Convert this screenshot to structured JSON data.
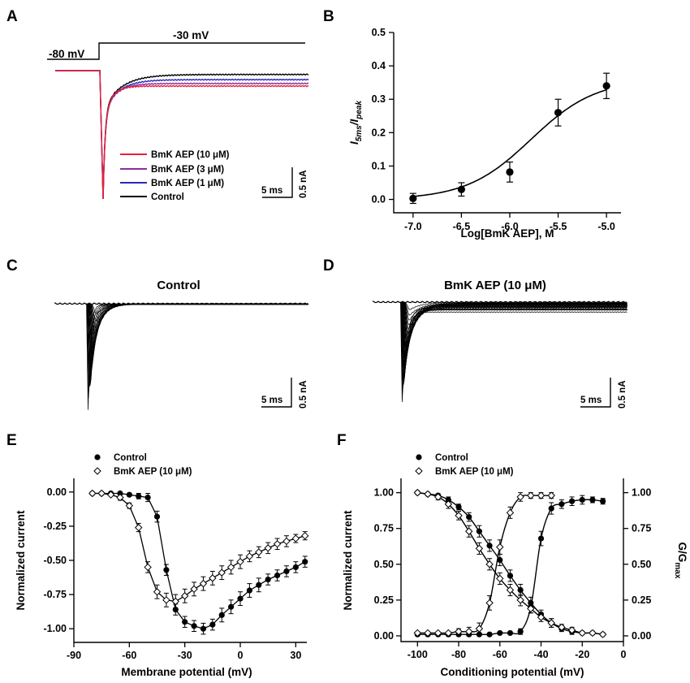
{
  "panels": {
    "A": {
      "letter": "A"
    },
    "B": {
      "letter": "B"
    },
    "C": {
      "letter": "C"
    },
    "D": {
      "letter": "D"
    },
    "E": {
      "letter": "E"
    },
    "F": {
      "letter": "F"
    }
  },
  "colors": {
    "red": "#e8203a",
    "purple": "#8b2f9c",
    "blue": "#2a2ab8",
    "black": "#000000"
  },
  "chart_data": [
    {
      "id": "A",
      "type": "line",
      "protocol": {
        "holding_label": "-80 mV",
        "test_label": "-30 mV"
      },
      "scalebar": {
        "x_label": "5 ms",
        "y_label": "0.5 nA"
      },
      "legend": [
        {
          "name": "BmK AEP (10 μM)",
          "color": "#e8203a"
        },
        {
          "name": "BmK AEP (3 μM)",
          "color": "#8b2f9c"
        },
        {
          "name": "BmK AEP (1 μM)",
          "color": "#2a2ab8"
        },
        {
          "name": "Control",
          "color": "#000000"
        }
      ],
      "steady_fraction": [
        0.12,
        0.1,
        0.07,
        0.03
      ]
    },
    {
      "id": "B",
      "type": "scatter",
      "xlabel": "Log[BmK AEP], M",
      "ylabel_main": "I",
      "ylabel_sub1": "5ms",
      "ylabel_mid": "/I",
      "ylabel_sub2": "peak",
      "xlim": [
        -7.2,
        -4.85
      ],
      "ylim": [
        -0.04,
        0.5
      ],
      "xticks": [
        "-7.0",
        "-6.5",
        "-6.0",
        "-5.5",
        "-5.0"
      ],
      "xtick_values": [
        -7.0,
        -6.5,
        -6.0,
        -5.5,
        -5.0
      ],
      "yticks": [
        "0.0",
        "0.1",
        "0.2",
        "0.3",
        "0.4",
        "0.5"
      ],
      "ytick_values": [
        0.0,
        0.1,
        0.2,
        0.3,
        0.4,
        0.5
      ],
      "x": [
        -7.0,
        -6.5,
        -6.0,
        -5.5,
        -5.0
      ],
      "y": [
        0.003,
        0.03,
        0.082,
        0.26,
        0.34
      ],
      "err": [
        0.015,
        0.02,
        0.03,
        0.04,
        0.038
      ],
      "fit": {
        "bottom": 0.0,
        "top": 0.36,
        "log_ec50": -5.78,
        "hill": 1.3
      }
    },
    {
      "id": "C",
      "type": "line",
      "title": "Control",
      "scalebar": {
        "x_label": "5 ms",
        "y_label": "0.5 nA"
      },
      "sweeps": 18
    },
    {
      "id": "D",
      "type": "line",
      "title": "BmK AEP (10 μM)",
      "scalebar": {
        "x_label": "5 ms",
        "y_label": "0.5 nA"
      },
      "sweeps": 24
    },
    {
      "id": "E",
      "type": "scatter",
      "xlabel": "Membrane potential (mV)",
      "ylabel": "Normalized current",
      "xlim": [
        -90,
        36
      ],
      "ylim": [
        -1.1,
        0.1
      ],
      "xticks": [
        "-90",
        "-60",
        "-30",
        "0",
        "30"
      ],
      "xtick_values": [
        -90,
        -60,
        -30,
        0,
        30
      ],
      "yticks": [
        "0.00",
        "-0.25",
        "-0.50",
        "-0.75",
        "-1.00"
      ],
      "ytick_values": [
        0.0,
        -0.25,
        -0.5,
        -0.75,
        -1.0
      ],
      "series": [
        {
          "name": "Control",
          "marker": "filled-circle",
          "x": [
            -80,
            -75,
            -70,
            -65,
            -60,
            -55,
            -50,
            -45,
            -40,
            -35,
            -30,
            -25,
            -20,
            -15,
            -10,
            -5,
            0,
            5,
            10,
            15,
            20,
            25,
            30,
            35
          ],
          "y": [
            -0.01,
            -0.01,
            -0.01,
            -0.01,
            -0.02,
            -0.03,
            -0.04,
            -0.18,
            -0.57,
            -0.86,
            -0.95,
            -0.98,
            -1.0,
            -0.97,
            -0.9,
            -0.84,
            -0.78,
            -0.72,
            -0.68,
            -0.64,
            -0.61,
            -0.58,
            -0.55,
            -0.51
          ],
          "err": [
            0.01,
            0.01,
            0.01,
            0.01,
            0.01,
            0.02,
            0.03,
            0.04,
            0.04,
            0.04,
            0.04,
            0.04,
            0.04,
            0.04,
            0.05,
            0.05,
            0.05,
            0.05,
            0.05,
            0.04,
            0.04,
            0.04,
            0.04,
            0.04
          ]
        },
        {
          "name": "BmK AEP (10 μM)",
          "marker": "open-diamond",
          "x": [
            -80,
            -75,
            -70,
            -65,
            -60,
            -55,
            -50,
            -45,
            -40,
            -35,
            -30,
            -25,
            -20,
            -15,
            -10,
            -5,
            0,
            5,
            10,
            15,
            20,
            25,
            30,
            35
          ],
          "y": [
            -0.01,
            -0.01,
            -0.02,
            -0.04,
            -0.1,
            -0.26,
            -0.55,
            -0.73,
            -0.79,
            -0.8,
            -0.76,
            -0.71,
            -0.67,
            -0.63,
            -0.59,
            -0.55,
            -0.51,
            -0.47,
            -0.44,
            -0.41,
            -0.38,
            -0.36,
            -0.34,
            -0.32
          ],
          "err": [
            0.01,
            0.01,
            0.01,
            0.02,
            0.02,
            0.03,
            0.04,
            0.05,
            0.05,
            0.05,
            0.05,
            0.05,
            0.05,
            0.05,
            0.05,
            0.05,
            0.05,
            0.04,
            0.04,
            0.04,
            0.04,
            0.04,
            0.03,
            0.03
          ]
        }
      ],
      "legend_placement": "top-center"
    },
    {
      "id": "F",
      "type": "scatter",
      "xlabel": "Conditioning potential (mV)",
      "ylabel": "Normalized current",
      "ylabel_right_main": "G/G",
      "ylabel_right_sub": "max",
      "xlim": [
        -108,
        0
      ],
      "ylim": [
        -0.04,
        1.1
      ],
      "xticks": [
        "-100",
        "-80",
        "-60",
        "-40",
        "-20",
        "0"
      ],
      "xtick_values": [
        -100,
        -80,
        -60,
        -40,
        -20,
        0
      ],
      "yticks": [
        "0.00",
        "0.25",
        "0.50",
        "0.75",
        "1.00"
      ],
      "ytick_values": [
        0.0,
        0.25,
        0.5,
        0.75,
        1.0
      ],
      "series": [
        {
          "name": "Control",
          "marker": "filled-circle",
          "curve": "inactivation",
          "x": [
            -100,
            -95,
            -90,
            -85,
            -80,
            -75,
            -70,
            -65,
            -60,
            -55,
            -50,
            -45,
            -40,
            -35,
            -30,
            -25,
            -20,
            -15,
            -10
          ],
          "y": [
            1.0,
            0.99,
            0.98,
            0.95,
            0.9,
            0.83,
            0.73,
            0.63,
            0.53,
            0.42,
            0.32,
            0.23,
            0.15,
            0.09,
            0.05,
            0.03,
            0.02,
            0.02,
            0.01
          ],
          "err": [
            0.0,
            0.01,
            0.01,
            0.02,
            0.02,
            0.03,
            0.04,
            0.04,
            0.04,
            0.04,
            0.04,
            0.04,
            0.03,
            0.03,
            0.02,
            0.02,
            0.01,
            0.01,
            0.01
          ]
        },
        {
          "name": "Control",
          "marker": "filled-circle",
          "curve": "activation",
          "x": [
            -100,
            -95,
            -90,
            -85,
            -80,
            -75,
            -70,
            -65,
            -60,
            -55,
            -50,
            -45,
            -40,
            -35,
            -30,
            -25,
            -20,
            -15,
            -10
          ],
          "y": [
            0.01,
            0.01,
            0.01,
            0.01,
            0.01,
            0.01,
            0.01,
            0.01,
            0.02,
            0.02,
            0.03,
            0.2,
            0.68,
            0.89,
            0.92,
            0.94,
            0.95,
            0.95,
            0.94
          ],
          "err": [
            0.01,
            0.01,
            0.01,
            0.01,
            0.01,
            0.01,
            0.01,
            0.01,
            0.01,
            0.01,
            0.02,
            0.04,
            0.05,
            0.04,
            0.03,
            0.03,
            0.03,
            0.02,
            0.02
          ]
        },
        {
          "name": "BmK AEP (10 μM)",
          "marker": "open-diamond",
          "curve": "inactivation",
          "x": [
            -100,
            -95,
            -90,
            -85,
            -80,
            -75,
            -70,
            -65,
            -60,
            -55,
            -50,
            -45,
            -40,
            -35,
            -30,
            -25,
            -20,
            -15,
            -10
          ],
          "y": [
            1.0,
            0.99,
            0.97,
            0.92,
            0.84,
            0.73,
            0.61,
            0.5,
            0.4,
            0.32,
            0.25,
            0.19,
            0.13,
            0.09,
            0.06,
            0.04,
            0.02,
            0.02,
            0.01
          ],
          "err": [
            0.0,
            0.01,
            0.02,
            0.03,
            0.03,
            0.04,
            0.04,
            0.04,
            0.04,
            0.04,
            0.04,
            0.03,
            0.03,
            0.03,
            0.02,
            0.02,
            0.01,
            0.01,
            0.01
          ]
        },
        {
          "name": "BmK AEP (10 μM)",
          "marker": "open-diamond",
          "curve": "activation",
          "x": [
            -100,
            -95,
            -90,
            -85,
            -80,
            -75,
            -70,
            -65,
            -60,
            -55,
            -50,
            -45,
            -40,
            -35
          ],
          "y": [
            0.02,
            0.02,
            0.02,
            0.02,
            0.03,
            0.03,
            0.05,
            0.23,
            0.62,
            0.86,
            0.97,
            0.98,
            0.98,
            0.98
          ],
          "err": [
            0.01,
            0.01,
            0.01,
            0.01,
            0.02,
            0.03,
            0.04,
            0.05,
            0.05,
            0.04,
            0.03,
            0.02,
            0.02,
            0.02
          ]
        }
      ],
      "legend_placement": "top-left"
    }
  ]
}
